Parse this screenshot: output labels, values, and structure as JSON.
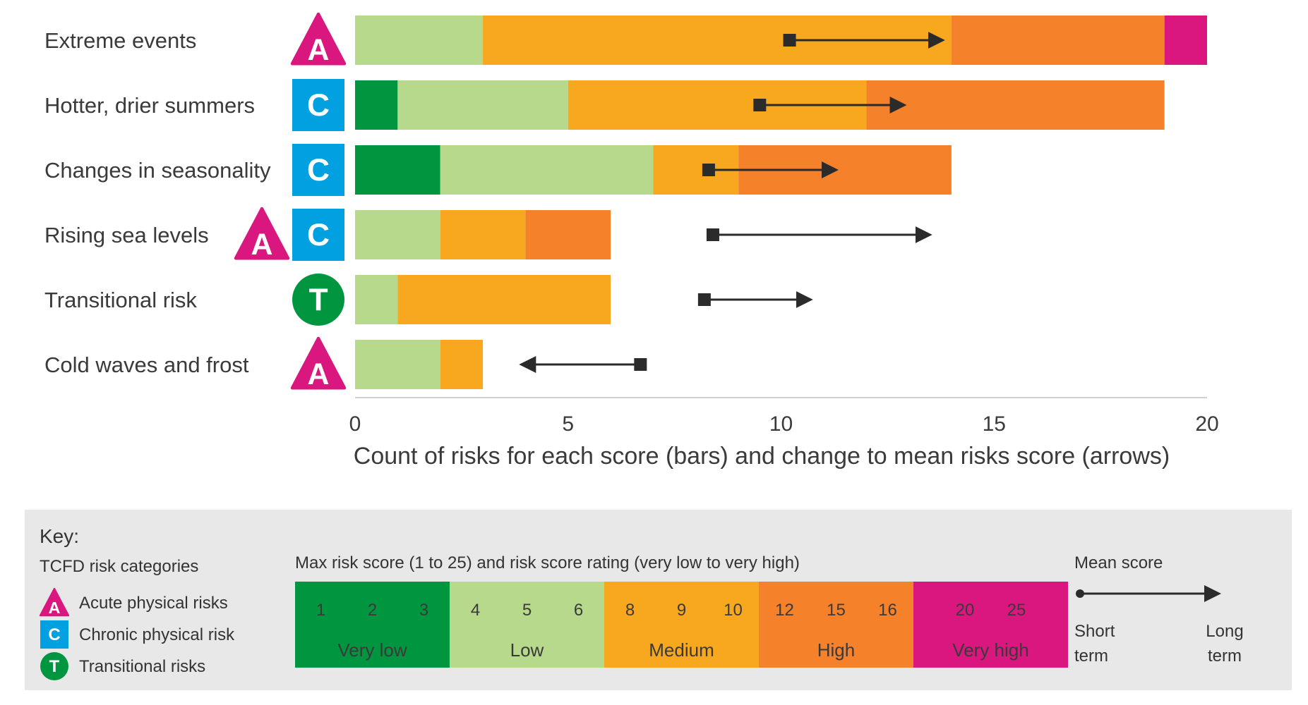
{
  "chart_data": {
    "type": "bar",
    "stacked": true,
    "orientation": "horizontal",
    "xlabel": "Count of risks for each score (bars) and change to mean risks score (arrows)",
    "xlim": [
      0,
      20
    ],
    "x_ticks": [
      "0",
      "5",
      "10",
      "15",
      "20"
    ],
    "categories": [
      "Extreme events",
      "Hotter, drier summers",
      "Changes in seasonality",
      "Rising sea levels",
      "Transitional risk",
      "Cold waves and frost"
    ],
    "category_badges": [
      [
        "A"
      ],
      [
        "C"
      ],
      [
        "C"
      ],
      [
        "A",
        "C"
      ],
      [
        "T"
      ],
      [
        "A"
      ]
    ],
    "series": [
      {
        "rating": "very-low",
        "color": "#00963f",
        "values": [
          0,
          1,
          2,
          0,
          0,
          0
        ]
      },
      {
        "rating": "low",
        "color": "#b7d98c",
        "values": [
          3,
          4,
          5,
          2,
          1,
          2
        ]
      },
      {
        "rating": "medium",
        "color": "#f8a81e",
        "values": [
          11,
          7,
          2,
          2,
          5,
          1
        ]
      },
      {
        "rating": "high",
        "color": "#f5812a",
        "values": [
          5,
          7,
          5,
          2,
          0,
          0
        ]
      },
      {
        "rating": "very-high",
        "color": "#d9177f",
        "values": [
          1,
          0,
          0,
          0,
          0,
          0
        ]
      }
    ],
    "mean_score_arrows": [
      {
        "category": "Extreme events",
        "short_term": 10.2,
        "long_term": 13.9
      },
      {
        "category": "Hotter, drier summers",
        "short_term": 9.5,
        "long_term": 13.0
      },
      {
        "category": "Changes in seasonality",
        "short_term": 8.3,
        "long_term": 11.4
      },
      {
        "category": "Rising sea levels",
        "short_term": 8.4,
        "long_term": 13.6
      },
      {
        "category": "Transitional risk",
        "short_term": 8.2,
        "long_term": 10.8
      },
      {
        "category": "Cold waves and frost",
        "short_term": 6.7,
        "long_term": 3.8
      }
    ]
  },
  "key": {
    "title": "Key:",
    "categories_heading": "TCFD risk categories",
    "categories": [
      {
        "badge": "A",
        "label": "Acute physical risks",
        "color": "#d9177f"
      },
      {
        "badge": "C",
        "label": "Chronic physical risk",
        "color": "#00a0e1"
      },
      {
        "badge": "T",
        "label": "Transitional risks",
        "color": "#00963f"
      }
    ],
    "scale_heading": "Max risk score (1 to 25) and risk score rating (very low to very high)",
    "scale": [
      {
        "scores": [
          "1",
          "2",
          "3"
        ],
        "rating": "Very low",
        "color": "#00963f"
      },
      {
        "scores": [
          "4",
          "5",
          "6"
        ],
        "rating": "Low",
        "color": "#b7d98c"
      },
      {
        "scores": [
          "8",
          "9",
          "10"
        ],
        "rating": "Medium",
        "color": "#f8a81e"
      },
      {
        "scores": [
          "12",
          "15",
          "16"
        ],
        "rating": "High",
        "color": "#f5812a"
      },
      {
        "scores": [
          "20",
          "25"
        ],
        "rating": "Very high",
        "color": "#d9177f"
      }
    ],
    "mean_heading": "Mean score",
    "short_term": [
      "Short",
      "term"
    ],
    "long_term": [
      "Long",
      "term"
    ]
  }
}
